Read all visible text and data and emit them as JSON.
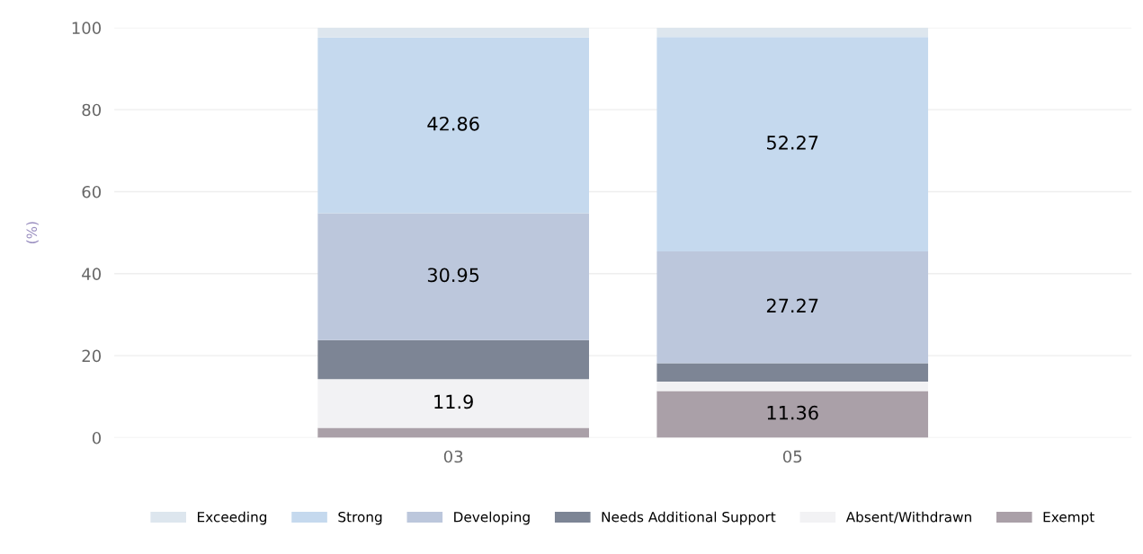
{
  "chart_data": {
    "type": "bar",
    "stacked": true,
    "ylabel": "(%)",
    "categories": [
      "03",
      "05"
    ],
    "series": [
      {
        "name": "Exempt",
        "color": "#aaa0a8",
        "values": [
          2.4,
          11.36
        ],
        "value_labels": [
          null,
          "11.36"
        ]
      },
      {
        "name": "Absent/Withdrawn",
        "color": "#f2f2f4",
        "values": [
          11.9,
          2.3
        ],
        "value_labels": [
          "11.9",
          null
        ]
      },
      {
        "name": "Needs Additional Support",
        "color": "#7d8595",
        "values": [
          9.5,
          4.5
        ],
        "value_labels": [
          null,
          null
        ]
      },
      {
        "name": "Developing",
        "color": "#bcc7dc",
        "values": [
          30.95,
          27.27
        ],
        "value_labels": [
          "30.95",
          "27.27"
        ]
      },
      {
        "name": "Strong",
        "color": "#c5d9ee",
        "values": [
          42.86,
          52.27
        ],
        "value_labels": [
          "42.86",
          "52.27"
        ]
      },
      {
        "name": "Exceeding",
        "color": "#dde6ee",
        "values": [
          2.4,
          2.3
        ],
        "value_labels": [
          null,
          null
        ]
      }
    ],
    "ylim": [
      0,
      100
    ],
    "yticks": [
      0,
      20,
      40,
      60,
      80,
      100
    ],
    "grid": "y",
    "legend": "bottom"
  }
}
